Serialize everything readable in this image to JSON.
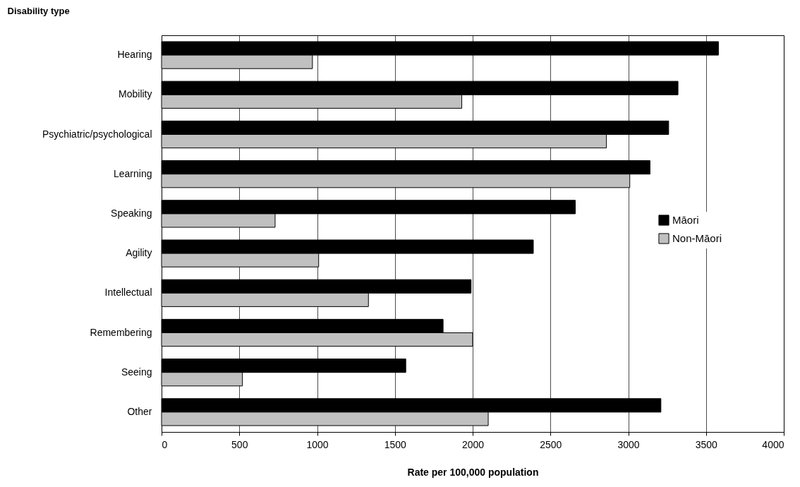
{
  "chart_data": {
    "type": "bar",
    "orientation": "horizontal",
    "ylabel": "Disability type",
    "xlabel": "Rate per 100,000 population",
    "categories": [
      "Hearing",
      "Mobility",
      "Psychiatric/psychological",
      "Learning",
      "Speaking",
      "Agility",
      "Intellectual",
      "Remembering",
      "Seeing",
      "Other"
    ],
    "series": [
      {
        "name": "Māori",
        "color": "#000000",
        "values": [
          3580,
          3320,
          3260,
          3140,
          2660,
          2390,
          1990,
          1810,
          1570,
          3210
        ]
      },
      {
        "name": "Non-Māori",
        "color": "#c0c0c0",
        "values": [
          970,
          1930,
          2860,
          3010,
          730,
          1010,
          1330,
          2000,
          520,
          2100
        ]
      }
    ],
    "xlim": [
      0,
      4000
    ],
    "xticks": [
      0,
      500,
      1000,
      1500,
      2000,
      2500,
      3000,
      3500,
      4000
    ],
    "grid": "x",
    "legend": "right"
  }
}
